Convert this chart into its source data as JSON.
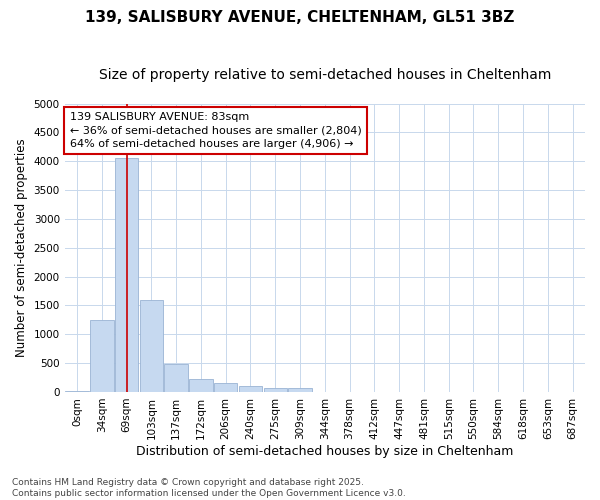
{
  "title": "139, SALISBURY AVENUE, CHELTENHAM, GL51 3BZ",
  "subtitle": "Size of property relative to semi-detached houses in Cheltenham",
  "xlabel": "Distribution of semi-detached houses by size in Cheltenham",
  "ylabel": "Number of semi-detached properties",
  "categories": [
    "0sqm",
    "34sqm",
    "69sqm",
    "103sqm",
    "137sqm",
    "172sqm",
    "206sqm",
    "240sqm",
    "275sqm",
    "309sqm",
    "344sqm",
    "378sqm",
    "412sqm",
    "447sqm",
    "481sqm",
    "515sqm",
    "550sqm",
    "584sqm",
    "618sqm",
    "653sqm",
    "687sqm"
  ],
  "values": [
    20,
    1250,
    4050,
    1600,
    490,
    220,
    150,
    100,
    75,
    60,
    0,
    0,
    0,
    0,
    0,
    0,
    0,
    0,
    0,
    0,
    0
  ],
  "bar_color": "#c6d9f0",
  "bar_edge_color": "#9ab4d4",
  "vline_x": 2.0,
  "vline_color": "#cc0000",
  "annotation_line1": "139 SALISBURY AVENUE: 83sqm",
  "annotation_line2": "← 36% of semi-detached houses are smaller (2,804)",
  "annotation_line3": "64% of semi-detached houses are larger (4,906) →",
  "annotation_box_color": "#ffffff",
  "annotation_box_edge": "#cc0000",
  "ylim": [
    0,
    5000
  ],
  "yticks": [
    0,
    500,
    1000,
    1500,
    2000,
    2500,
    3000,
    3500,
    4000,
    4500,
    5000
  ],
  "background_color": "#ffffff",
  "grid_color": "#c8d8ec",
  "footer": "Contains HM Land Registry data © Crown copyright and database right 2025.\nContains public sector information licensed under the Open Government Licence v3.0.",
  "title_fontsize": 11,
  "subtitle_fontsize": 10,
  "xlabel_fontsize": 9,
  "ylabel_fontsize": 8.5,
  "tick_fontsize": 7.5,
  "annotation_fontsize": 8,
  "footer_fontsize": 6.5
}
